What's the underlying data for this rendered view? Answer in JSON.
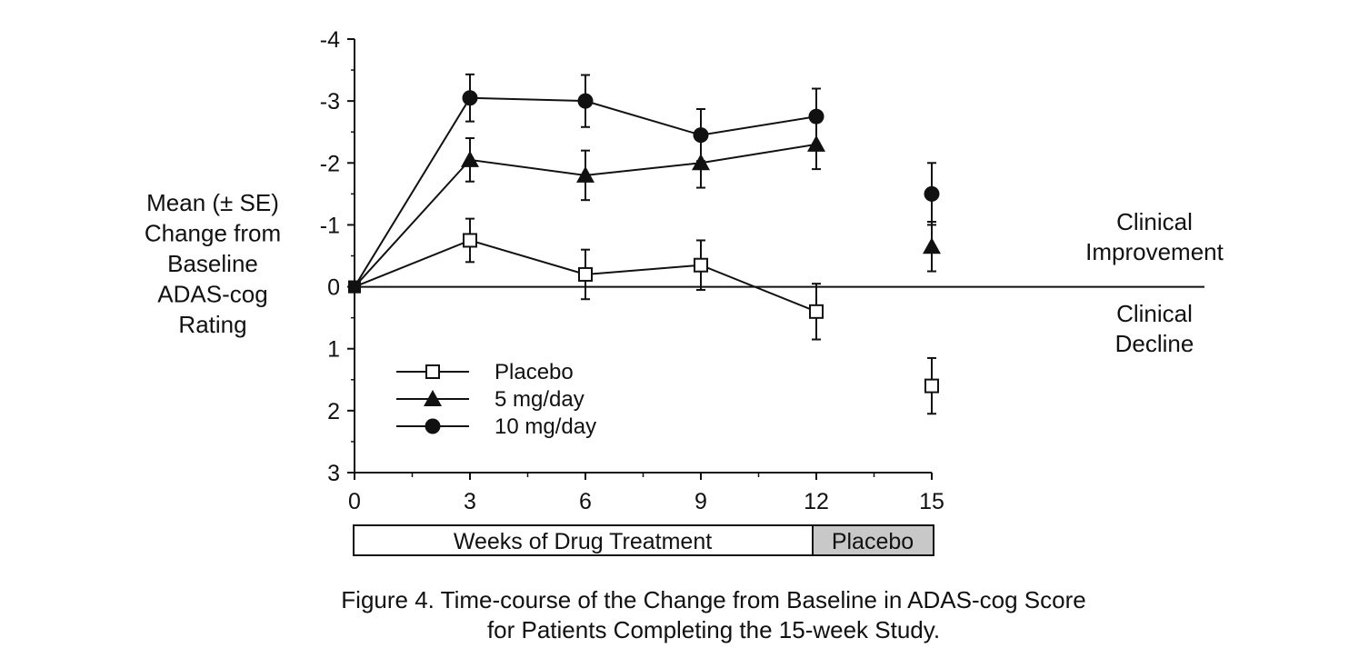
{
  "chart_data": {
    "type": "line",
    "y_axis_label_lines": [
      "Mean (± SE)",
      "Change from",
      "Baseline",
      "ADAS-cog",
      "Rating"
    ],
    "x_ticks": [
      "0",
      "3",
      "6",
      "9",
      "12",
      "15"
    ],
    "y_ticks": [
      "-4",
      "-3",
      "-2",
      "-1",
      "0",
      "1",
      "2",
      "3"
    ],
    "ylim": [
      -4,
      3
    ],
    "y_inverted": true,
    "xlim": [
      0,
      15
    ],
    "annotation_improvement": [
      "Clinical",
      "Improvement"
    ],
    "annotation_decline": [
      "Clinical",
      "Decline"
    ],
    "legend_position": "lower-left",
    "phase_bar": {
      "treatment_label": "Weeks of Drug Treatment",
      "placebo_label": "Placebo"
    },
    "caption_lines": [
      "Figure 4.  Time-course of the Change from Baseline in ADAS-cog Score",
      "for Patients Completing the 15-week Study."
    ],
    "series": [
      {
        "name": "Placebo",
        "marker": "open-square",
        "connected_x": [
          0,
          3,
          6,
          9,
          12
        ],
        "points": [
          {
            "x": 0,
            "y": 0,
            "err": 0
          },
          {
            "x": 3,
            "y": -0.75,
            "err": 0.35
          },
          {
            "x": 6,
            "y": -0.2,
            "err": 0.4
          },
          {
            "x": 9,
            "y": -0.35,
            "err": 0.4
          },
          {
            "x": 12,
            "y": 0.4,
            "err": 0.45
          },
          {
            "x": 15,
            "y": 1.6,
            "err": 0.45
          }
        ]
      },
      {
        "name": "5 mg/day",
        "marker": "filled-triangle",
        "connected_x": [
          0,
          3,
          6,
          9,
          12
        ],
        "points": [
          {
            "x": 0,
            "y": 0,
            "err": 0
          },
          {
            "x": 3,
            "y": -2.05,
            "err": 0.35
          },
          {
            "x": 6,
            "y": -1.8,
            "err": 0.4
          },
          {
            "x": 9,
            "y": -2.0,
            "err": 0.4
          },
          {
            "x": 12,
            "y": -2.3,
            "err": 0.4
          },
          {
            "x": 15,
            "y": -0.65,
            "err": 0.4
          }
        ]
      },
      {
        "name": "10 mg/day",
        "marker": "filled-circle",
        "connected_x": [
          0,
          3,
          6,
          9,
          12
        ],
        "points": [
          {
            "x": 0,
            "y": 0,
            "err": 0
          },
          {
            "x": 3,
            "y": -3.05,
            "err": 0.38
          },
          {
            "x": 6,
            "y": -3.0,
            "err": 0.42
          },
          {
            "x": 9,
            "y": -2.45,
            "err": 0.42
          },
          {
            "x": 12,
            "y": -2.75,
            "err": 0.45
          },
          {
            "x": 15,
            "y": -1.5,
            "err": 0.5
          }
        ]
      }
    ],
    "colors": {
      "line": "#111111",
      "placebo_band": "#c8c8c8",
      "background": "#ffffff"
    }
  }
}
